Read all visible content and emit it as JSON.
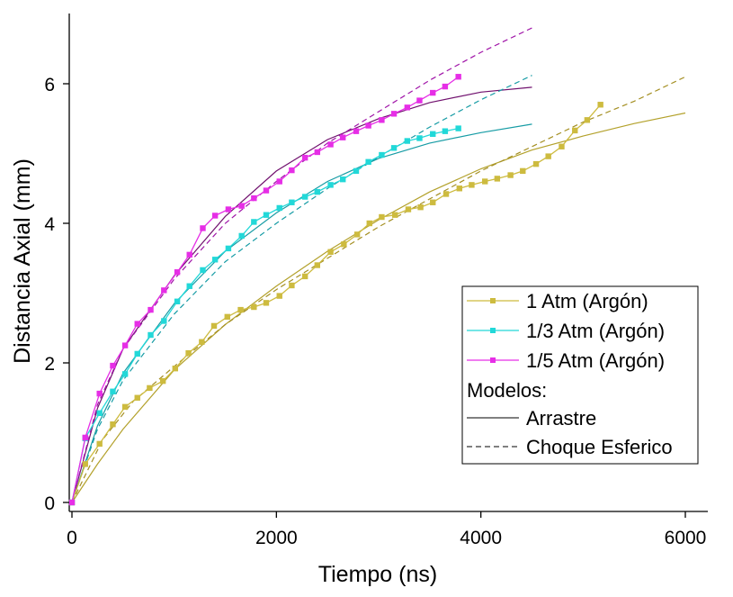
{
  "chart_data": {
    "type": "line",
    "xlabel": "Tiempo (ns)",
    "ylabel": "Distancia Axial (mm)",
    "xlim": [
      0,
      6000
    ],
    "ylim": [
      0,
      7
    ],
    "xticks": [
      0,
      2000,
      4000,
      6000
    ],
    "yticks": [
      0,
      2,
      4,
      6
    ],
    "xtick_labels": [
      "0",
      "2000",
      "4000",
      "6000"
    ],
    "ytick_labels": [
      "0",
      "2",
      "4",
      "6"
    ],
    "grid": false,
    "legend_position": "right",
    "legend_header": "Modelos:",
    "series": [
      {
        "name": "1 Atm (Argón)",
        "color": "#cdbb3f",
        "marker": "square",
        "points": [
          [
            0,
            0
          ],
          [
            130,
            0.55
          ],
          [
            270,
            0.84
          ],
          [
            400,
            1.12
          ],
          [
            520,
            1.37
          ],
          [
            640,
            1.5
          ],
          [
            760,
            1.64
          ],
          [
            890,
            1.74
          ],
          [
            1010,
            1.92
          ],
          [
            1140,
            2.14
          ],
          [
            1270,
            2.3
          ],
          [
            1390,
            2.53
          ],
          [
            1520,
            2.66
          ],
          [
            1650,
            2.76
          ],
          [
            1780,
            2.8
          ],
          [
            1900,
            2.86
          ],
          [
            2030,
            2.96
          ],
          [
            2150,
            3.11
          ],
          [
            2280,
            3.24
          ],
          [
            2400,
            3.4
          ],
          [
            2530,
            3.59
          ],
          [
            2660,
            3.7
          ],
          [
            2790,
            3.84
          ],
          [
            2910,
            4.0
          ],
          [
            3030,
            4.09
          ],
          [
            3160,
            4.12
          ],
          [
            3290,
            4.2
          ],
          [
            3410,
            4.23
          ],
          [
            3530,
            4.3
          ],
          [
            3660,
            4.42
          ],
          [
            3790,
            4.5
          ],
          [
            3910,
            4.55
          ],
          [
            4040,
            4.6
          ],
          [
            4160,
            4.64
          ],
          [
            4290,
            4.69
          ],
          [
            4410,
            4.75
          ],
          [
            4540,
            4.85
          ],
          [
            4660,
            4.96
          ],
          [
            4790,
            5.1
          ],
          [
            4920,
            5.33
          ],
          [
            5040,
            5.48
          ],
          [
            5170,
            5.7
          ]
        ]
      },
      {
        "name": "1/3 Atm (Argón)",
        "color": "#22d8d8",
        "marker": "square",
        "points": [
          [
            0,
            0
          ],
          [
            130,
            0.92
          ],
          [
            270,
            1.28
          ],
          [
            400,
            1.59
          ],
          [
            520,
            1.84
          ],
          [
            640,
            2.13
          ],
          [
            770,
            2.4
          ],
          [
            900,
            2.6
          ],
          [
            1030,
            2.88
          ],
          [
            1150,
            3.1
          ],
          [
            1280,
            3.33
          ],
          [
            1400,
            3.48
          ],
          [
            1530,
            3.64
          ],
          [
            1660,
            3.82
          ],
          [
            1780,
            4.02
          ],
          [
            1900,
            4.12
          ],
          [
            2030,
            4.22
          ],
          [
            2150,
            4.3
          ],
          [
            2280,
            4.38
          ],
          [
            2400,
            4.45
          ],
          [
            2530,
            4.55
          ],
          [
            2650,
            4.63
          ],
          [
            2780,
            4.75
          ],
          [
            2900,
            4.88
          ],
          [
            3030,
            4.98
          ],
          [
            3150,
            5.08
          ],
          [
            3280,
            5.18
          ],
          [
            3400,
            5.22
          ],
          [
            3530,
            5.28
          ],
          [
            3650,
            5.32
          ],
          [
            3780,
            5.36
          ]
        ]
      },
      {
        "name": "1/5 Atm (Argón)",
        "color": "#e62ee6",
        "marker": "square",
        "points": [
          [
            0,
            0
          ],
          [
            130,
            0.93
          ],
          [
            270,
            1.56
          ],
          [
            400,
            1.96
          ],
          [
            520,
            2.25
          ],
          [
            640,
            2.56
          ],
          [
            770,
            2.76
          ],
          [
            900,
            3.04
          ],
          [
            1030,
            3.3
          ],
          [
            1150,
            3.55
          ],
          [
            1280,
            3.93
          ],
          [
            1400,
            4.11
          ],
          [
            1530,
            4.2
          ],
          [
            1660,
            4.25
          ],
          [
            1780,
            4.36
          ],
          [
            1900,
            4.47
          ],
          [
            2030,
            4.6
          ],
          [
            2150,
            4.76
          ],
          [
            2280,
            4.94
          ],
          [
            2400,
            5.02
          ],
          [
            2530,
            5.13
          ],
          [
            2650,
            5.23
          ],
          [
            2780,
            5.32
          ],
          [
            2900,
            5.4
          ],
          [
            3030,
            5.48
          ],
          [
            3150,
            5.57
          ],
          [
            3280,
            5.66
          ],
          [
            3400,
            5.76
          ],
          [
            3530,
            5.87
          ],
          [
            3650,
            5.96
          ],
          [
            3780,
            6.1
          ]
        ]
      }
    ],
    "models": [
      {
        "name": "Arrastre",
        "style": "solid",
        "curves": [
          {
            "color": "#b3a12b",
            "points": [
              [
                0,
                0
              ],
              [
                250,
                0.55
              ],
              [
                500,
                1.05
              ],
              [
                1000,
                1.9
              ],
              [
                1500,
                2.55
              ],
              [
                2000,
                3.1
              ],
              [
                2500,
                3.6
              ],
              [
                3000,
                4.05
              ],
              [
                3500,
                4.45
              ],
              [
                4000,
                4.78
              ],
              [
                4500,
                5.05
              ],
              [
                5000,
                5.25
              ],
              [
                5500,
                5.43
              ],
              [
                6000,
                5.58
              ]
            ]
          },
          {
            "color": "#179ca5",
            "points": [
              [
                0,
                0
              ],
              [
                250,
                1.1
              ],
              [
                500,
                1.85
              ],
              [
                1000,
                2.85
              ],
              [
                1500,
                3.6
              ],
              [
                2000,
                4.15
              ],
              [
                2500,
                4.6
              ],
              [
                3000,
                4.93
              ],
              [
                3500,
                5.15
              ],
              [
                4000,
                5.3
              ],
              [
                4500,
                5.42
              ]
            ]
          },
          {
            "color": "#70106e",
            "points": [
              [
                0,
                0
              ],
              [
                250,
                1.35
              ],
              [
                500,
                2.2
              ],
              [
                1000,
                3.25
              ],
              [
                1500,
                4.1
              ],
              [
                2000,
                4.75
              ],
              [
                2500,
                5.2
              ],
              [
                3000,
                5.5
              ],
              [
                3500,
                5.73
              ],
              [
                4000,
                5.88
              ],
              [
                4500,
                5.95
              ]
            ]
          }
        ]
      },
      {
        "name": "Choque Esferico",
        "style": "dashed",
        "curves": [
          {
            "color": "#a48f22",
            "points": [
              [
                0,
                0
              ],
              [
                300,
                0.9
              ],
              [
                600,
                1.45
              ],
              [
                1000,
                1.95
              ],
              [
                1500,
                2.55
              ],
              [
                2000,
                3.05
              ],
              [
                2500,
                3.5
              ],
              [
                3000,
                3.95
              ],
              [
                3500,
                4.35
              ],
              [
                4000,
                4.75
              ],
              [
                4500,
                5.1
              ],
              [
                5000,
                5.45
              ],
              [
                5500,
                5.75
              ],
              [
                6000,
                6.1
              ]
            ]
          },
          {
            "color": "#179ca5",
            "points": [
              [
                0,
                0
              ],
              [
                250,
                1.05
              ],
              [
                500,
                1.75
              ],
              [
                1000,
                2.7
              ],
              [
                1500,
                3.45
              ],
              [
                2000,
                4.0
              ],
              [
                2500,
                4.5
              ],
              [
                3000,
                4.95
              ],
              [
                3500,
                5.38
              ],
              [
                4000,
                5.77
              ],
              [
                4500,
                6.12
              ]
            ]
          },
          {
            "color": "#a015a8",
            "points": [
              [
                0,
                0
              ],
              [
                250,
                1.4
              ],
              [
                500,
                2.2
              ],
              [
                1000,
                3.2
              ],
              [
                1500,
                4.0
              ],
              [
                2000,
                4.6
              ],
              [
                2500,
                5.15
              ],
              [
                3000,
                5.6
              ],
              [
                3500,
                6.05
              ],
              [
                4000,
                6.45
              ],
              [
                4500,
                6.8
              ]
            ]
          }
        ]
      }
    ]
  }
}
